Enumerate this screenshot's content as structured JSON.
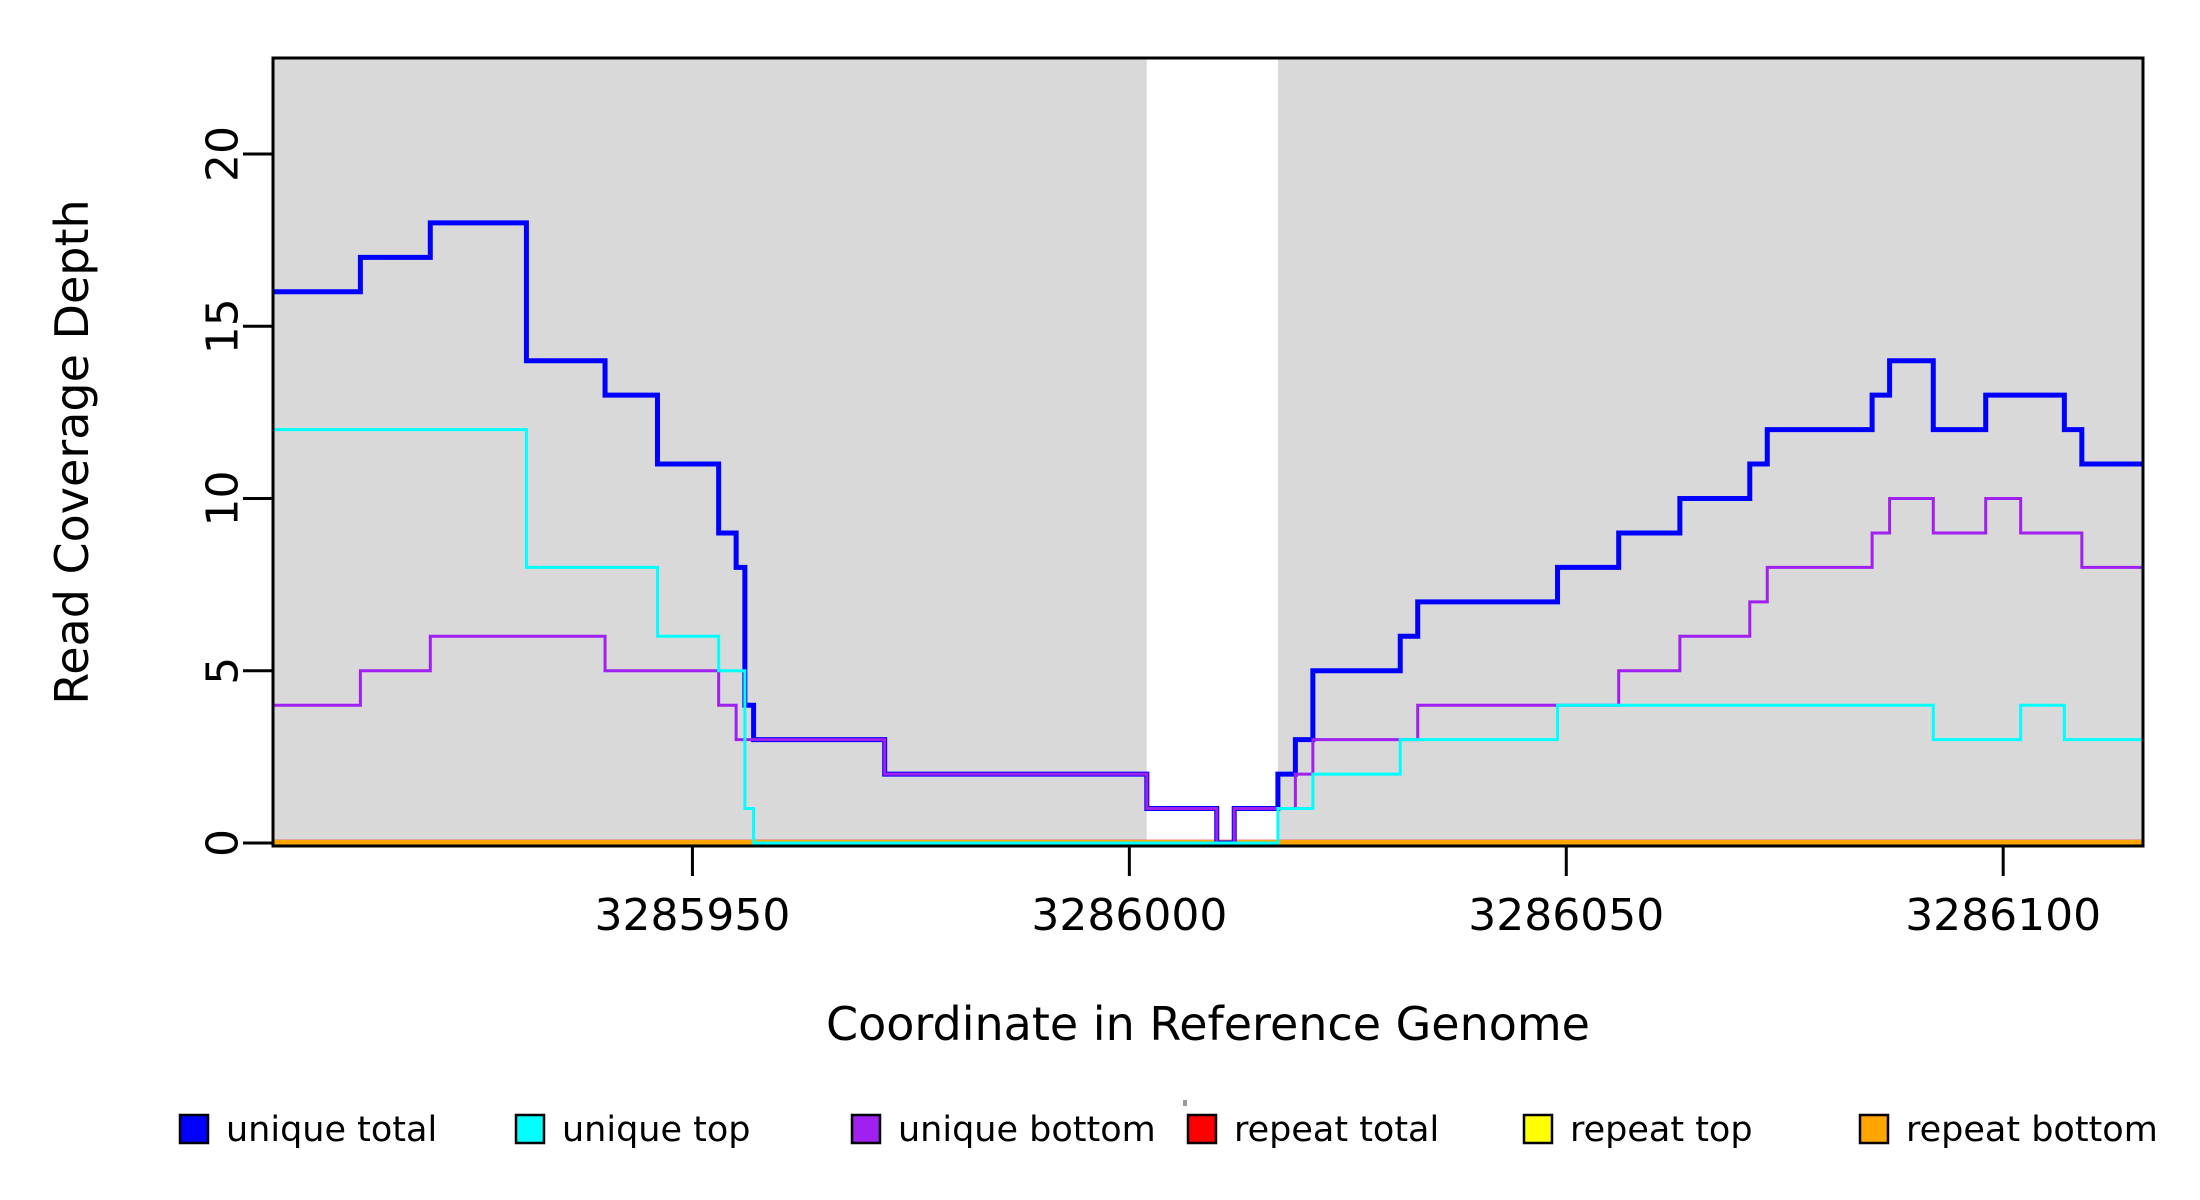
{
  "chart_data": {
    "type": "line",
    "subtype": "step-coverage-plot",
    "title": "",
    "xlabel": "Coordinate in Reference Genome",
    "ylabel": "Read Coverage Depth",
    "xlim": [
      3285902,
      3286116
    ],
    "ylim": [
      0,
      22.8
    ],
    "x_ticks": [
      3285950,
      3286000,
      3286050,
      3286100
    ],
    "x_tick_labels": [
      "3285950",
      "3286000",
      "3286050",
      "3286100"
    ],
    "y_ticks": [
      0,
      5,
      10,
      15,
      20
    ],
    "y_tick_labels": [
      "0",
      "5",
      "10",
      "15",
      "20"
    ],
    "grid": false,
    "legend_position": "bottom",
    "panel": {
      "shaded_color": "#d9d9d9",
      "gap_color": "#ffffff",
      "shaded_regions": [
        [
          3285902,
          3286002
        ],
        [
          3286017,
          3286116
        ]
      ],
      "gap_region": [
        3286002,
        3286017
      ],
      "border_color": "#000000"
    },
    "series": [
      {
        "name": "repeat total",
        "color": "#ff0000",
        "width": 6.5,
        "points": [
          [
            3285902,
            0
          ],
          [
            3286116,
            0
          ]
        ]
      },
      {
        "name": "repeat top",
        "color": "#ffff00",
        "width": 5.5,
        "points": [
          [
            3285902,
            0
          ],
          [
            3286116,
            0
          ]
        ]
      },
      {
        "name": "repeat bottom",
        "color": "#ffa500",
        "width": 4.5,
        "points": [
          [
            3285902,
            0
          ],
          [
            3286116,
            0
          ]
        ]
      },
      {
        "name": "unique total",
        "color": "#0000ff",
        "width": 5,
        "points": [
          [
            3285902,
            16
          ],
          [
            3285912,
            17
          ],
          [
            3285920,
            18
          ],
          [
            3285931,
            14
          ],
          [
            3285940,
            13
          ],
          [
            3285946,
            11
          ],
          [
            3285953,
            9
          ],
          [
            3285955,
            8
          ],
          [
            3285956,
            4
          ],
          [
            3285957,
            3
          ],
          [
            3285972,
            2
          ],
          [
            3286002,
            1
          ],
          [
            3286010,
            0
          ],
          [
            3286012,
            1
          ],
          [
            3286017,
            2
          ],
          [
            3286019,
            3
          ],
          [
            3286021,
            5
          ],
          [
            3286031,
            6
          ],
          [
            3286033,
            7
          ],
          [
            3286049,
            8
          ],
          [
            3286056,
            9
          ],
          [
            3286063,
            10
          ],
          [
            3286071,
            11
          ],
          [
            3286073,
            12
          ],
          [
            3286085,
            13
          ],
          [
            3286087,
            14
          ],
          [
            3286092,
            12
          ],
          [
            3286098,
            13
          ],
          [
            3286107,
            12
          ],
          [
            3286109,
            11
          ],
          [
            3286116,
            11
          ]
        ]
      },
      {
        "name": "unique bottom",
        "color": "#a020f0",
        "width": 3,
        "points": [
          [
            3285902,
            4
          ],
          [
            3285912,
            5
          ],
          [
            3285920,
            6
          ],
          [
            3285940,
            5
          ],
          [
            3285953,
            4
          ],
          [
            3285955,
            3
          ],
          [
            3285972,
            2
          ],
          [
            3286002,
            1
          ],
          [
            3286010,
            0
          ],
          [
            3286012,
            1
          ],
          [
            3286019,
            2
          ],
          [
            3286021,
            3
          ],
          [
            3286033,
            4
          ],
          [
            3286056,
            5
          ],
          [
            3286063,
            6
          ],
          [
            3286071,
            7
          ],
          [
            3286073,
            8
          ],
          [
            3286085,
            9
          ],
          [
            3286087,
            10
          ],
          [
            3286092,
            9
          ],
          [
            3286098,
            10
          ],
          [
            3286102,
            9
          ],
          [
            3286109,
            8
          ],
          [
            3286116,
            8
          ]
        ]
      },
      {
        "name": "unique top",
        "color": "#00ffff",
        "width": 3,
        "points": [
          [
            3285902,
            12
          ],
          [
            3285931,
            8
          ],
          [
            3285946,
            6
          ],
          [
            3285953,
            5
          ],
          [
            3285956,
            1
          ],
          [
            3285957,
            0
          ],
          [
            3286017,
            1
          ],
          [
            3286021,
            2
          ],
          [
            3286031,
            3
          ],
          [
            3286049,
            4
          ],
          [
            3286092,
            3
          ],
          [
            3286102,
            4
          ],
          [
            3286107,
            3
          ],
          [
            3286116,
            3
          ]
        ]
      }
    ],
    "legend": [
      {
        "label": "unique total",
        "color": "#0000ff"
      },
      {
        "label": "unique top",
        "color": "#00ffff"
      },
      {
        "label": "unique bottom",
        "color": "#a020f0"
      },
      {
        "label": "repeat total",
        "color": "#ff0000"
      },
      {
        "label": "repeat top",
        "color": "#ffff00"
      },
      {
        "label": "repeat bottom",
        "color": "#ffa500"
      }
    ]
  }
}
